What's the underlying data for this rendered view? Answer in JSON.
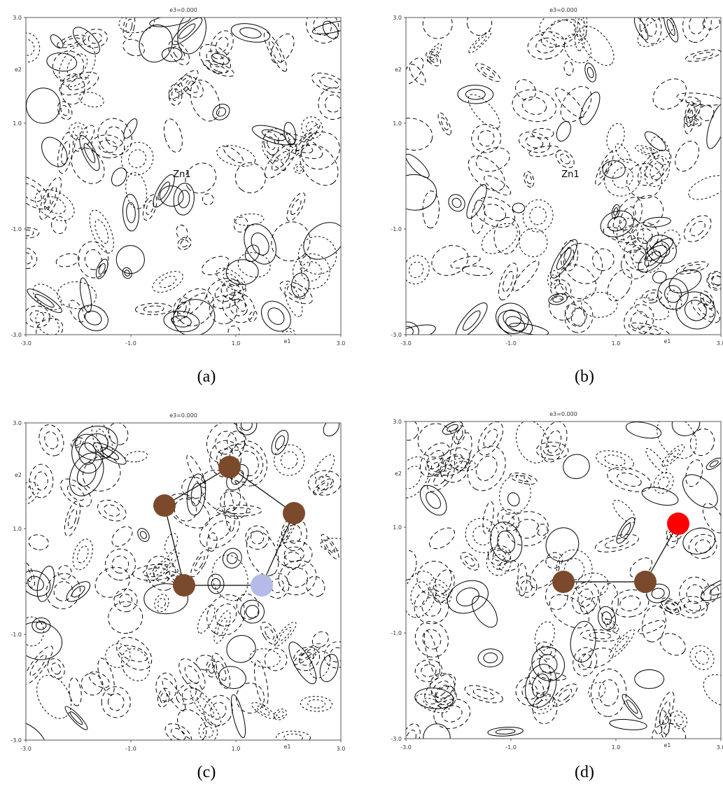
{
  "panels": [
    {
      "title": "e3=0.000",
      "caption": "(a)",
      "x_label": "e1",
      "y_label": "e2",
      "xticks": [
        {
          "value": -3,
          "label": "-3.0"
        },
        {
          "value": -1,
          "label": "-1.0"
        },
        {
          "value": 1,
          "label": "1.0"
        },
        {
          "value": 3,
          "label": "3.0"
        }
      ],
      "yticks": [
        {
          "value": -3,
          "label": "-3.0"
        },
        {
          "value": -1,
          "label": "-1.0"
        },
        {
          "value": 1,
          "label": "1.0"
        },
        {
          "value": 3,
          "label": "3.0"
        }
      ],
      "atom_label": "Zn1"
    },
    {
      "title": "e3=0.000",
      "caption": "(b)",
      "x_label": "e1",
      "y_label": "e2",
      "xticks": [
        {
          "value": -3,
          "label": "-3.0"
        },
        {
          "value": -1,
          "label": "-1.0"
        },
        {
          "value": 1,
          "label": "1.0"
        },
        {
          "value": 3,
          "label": "3.0"
        }
      ],
      "yticks": [
        {
          "value": -3,
          "label": "-3.0"
        },
        {
          "value": -1,
          "label": "-1.0"
        },
        {
          "value": 1,
          "label": "1.0"
        },
        {
          "value": 3,
          "label": "3.0"
        }
      ],
      "atom_label": "Zn1"
    },
    {
      "title": "e3=0.000",
      "caption": "(c)",
      "x_label": "e1",
      "y_label": "e2",
      "xticks": [
        {
          "value": -3,
          "label": "-3.0"
        },
        {
          "value": -1,
          "label": "-1.0"
        },
        {
          "value": 1,
          "label": "1.0"
        },
        {
          "value": 3,
          "label": "3.0"
        }
      ],
      "yticks": [
        {
          "value": -3,
          "label": "-3.0"
        },
        {
          "value": -1,
          "label": "-1.0"
        },
        {
          "value": 1,
          "label": "1.0"
        },
        {
          "value": 3,
          "label": "3.0"
        }
      ]
    },
    {
      "title": "e3=0.000",
      "caption": "(d)",
      "x_label": "e1",
      "y_label": "e2",
      "xticks": [
        {
          "value": -3,
          "label": "-3.0"
        },
        {
          "value": -1,
          "label": "-1.0"
        },
        {
          "value": 1,
          "label": "1.0"
        },
        {
          "value": 3,
          "label": "3.0"
        }
      ],
      "yticks": [
        {
          "value": -3,
          "label": "-3.0"
        },
        {
          "value": -1,
          "label": "-1.0"
        },
        {
          "value": 1,
          "label": "1.0"
        },
        {
          "value": 3,
          "label": "3.0"
        }
      ]
    }
  ]
}
